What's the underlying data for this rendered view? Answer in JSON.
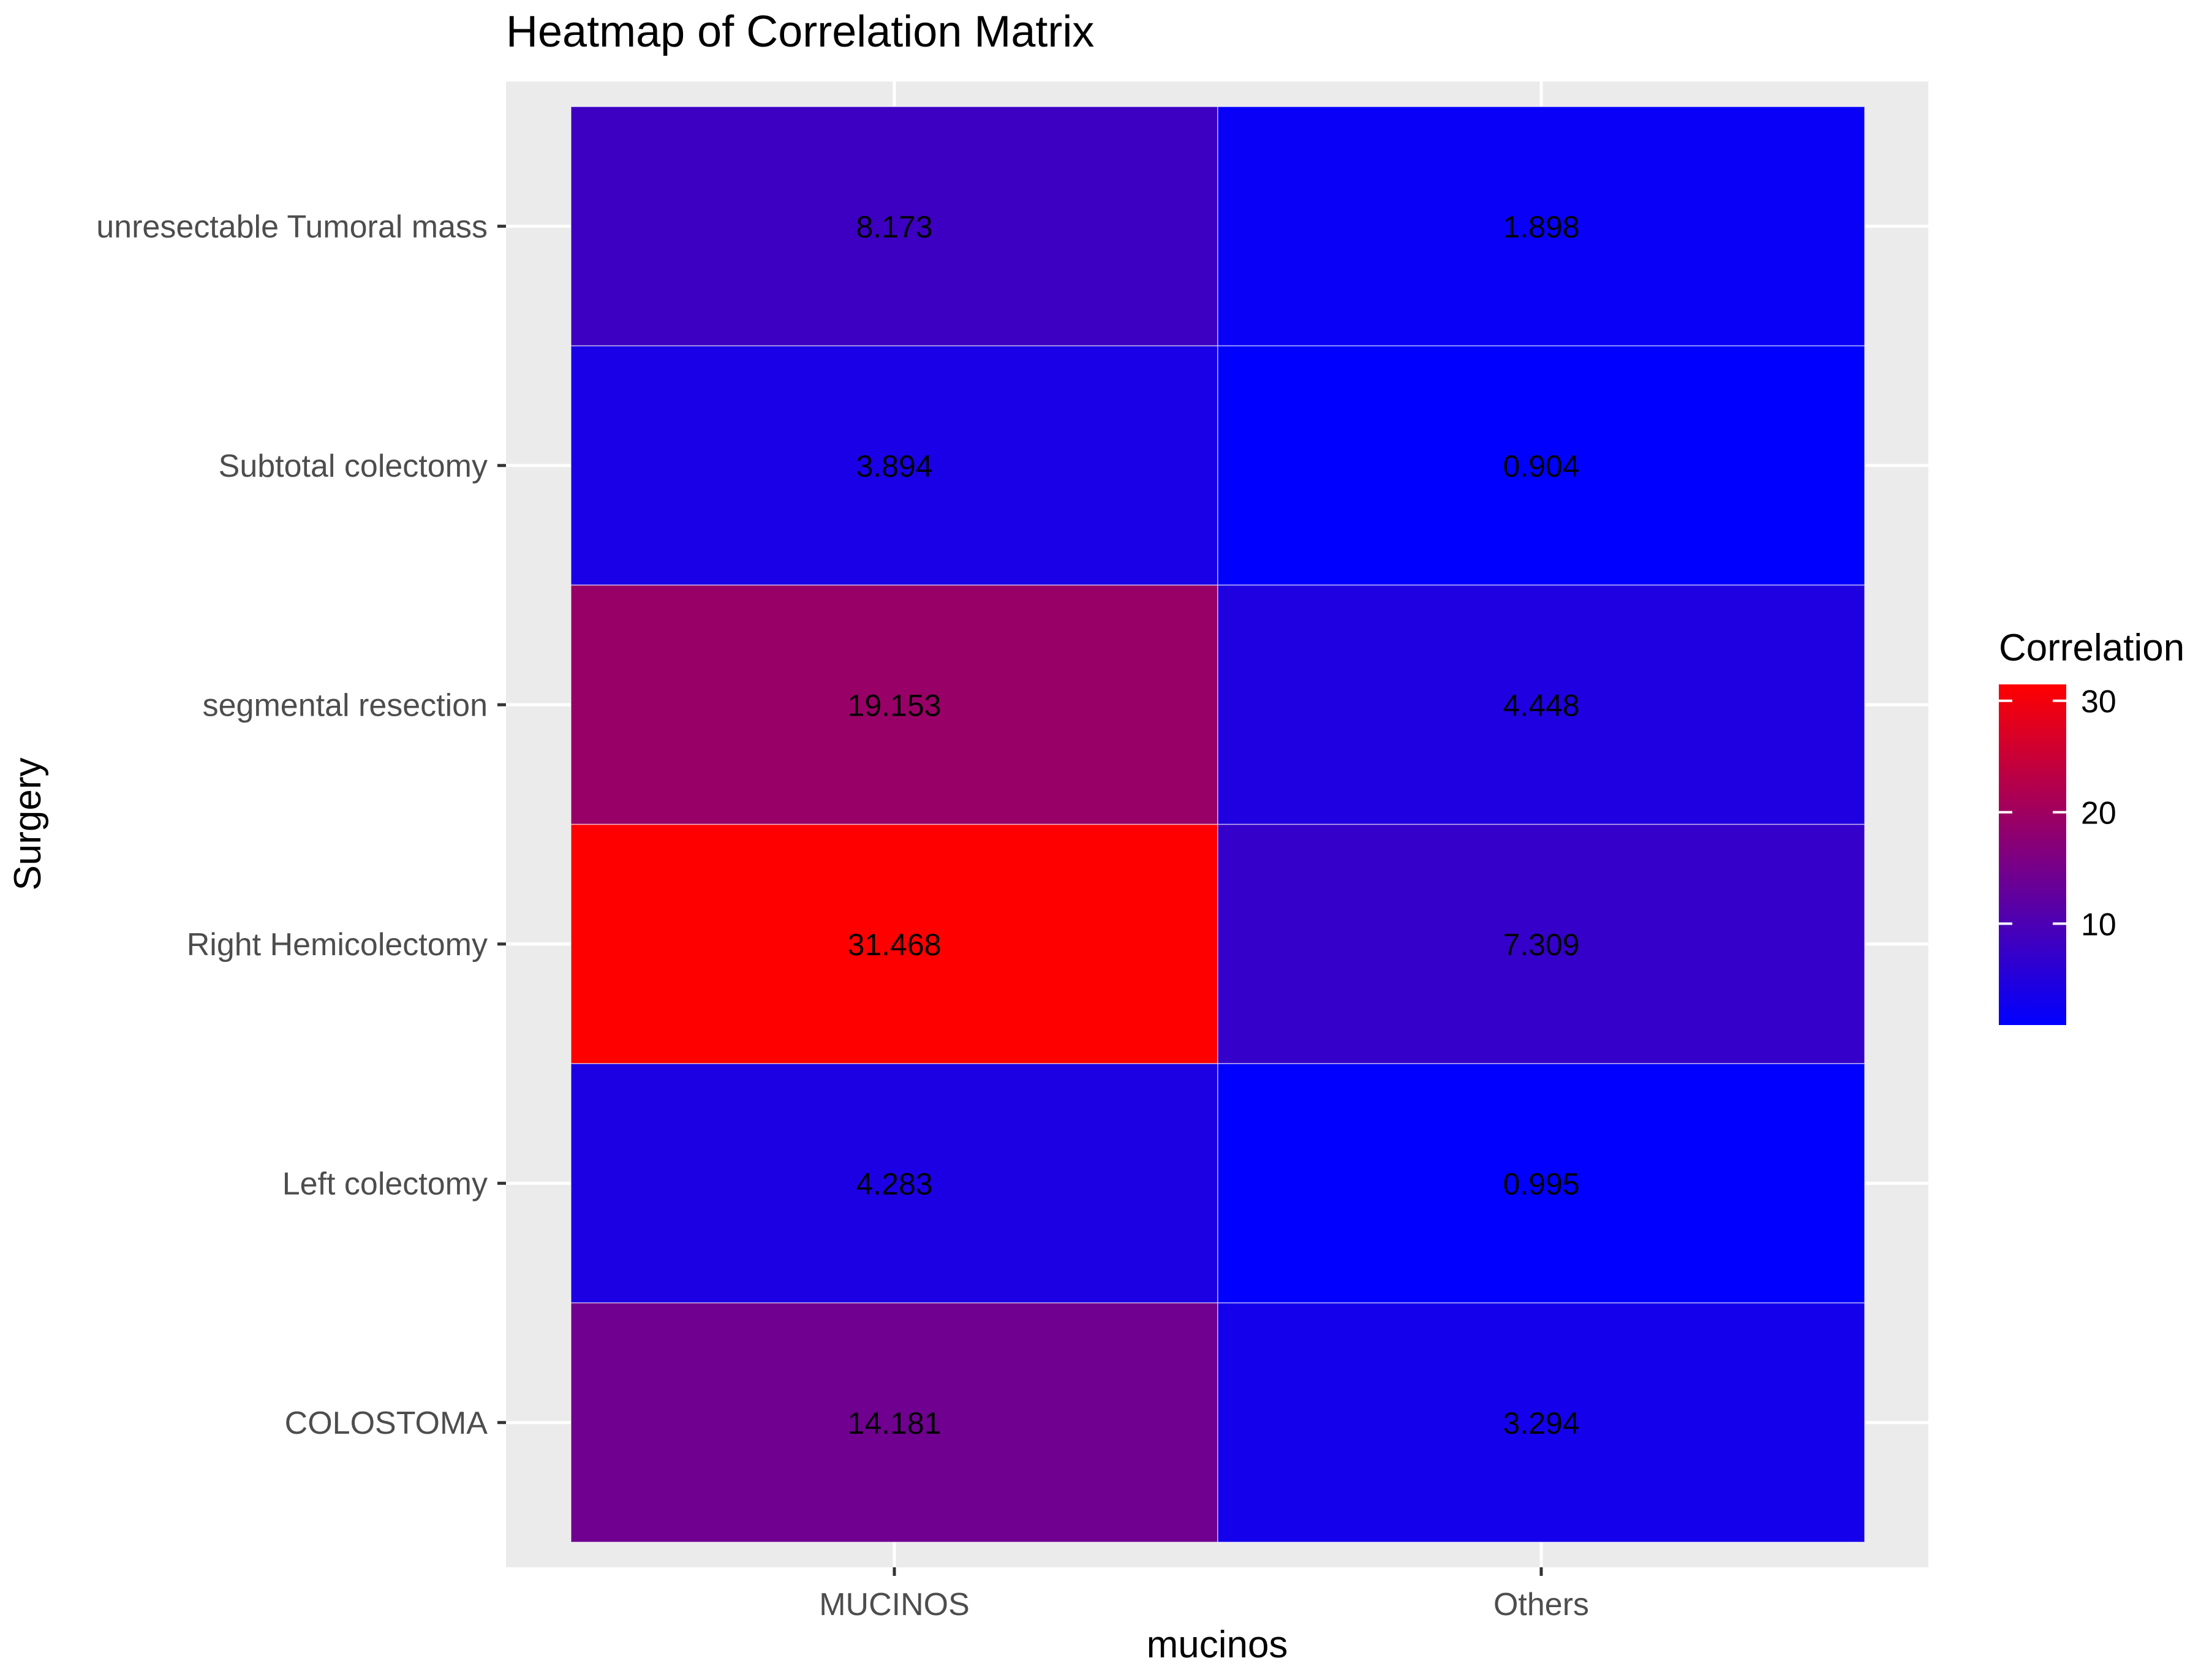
{
  "chart_data": {
    "type": "heatmap",
    "title": "Heatmap of Correlation Matrix",
    "xlabel": "mucinos",
    "ylabel": "Surgery",
    "x_categories": [
      "MUCINOS",
      "Others"
    ],
    "y_categories": [
      "unresectable Tumoral mass",
      "Subtotal colectomy",
      "segmental resection",
      "Right Hemicolectomy",
      "Left colectomy",
      "COLOSTOMA"
    ],
    "values": [
      [
        8.173,
        1.898
      ],
      [
        3.894,
        0.904
      ],
      [
        19.153,
        4.448
      ],
      [
        31.468,
        7.309
      ],
      [
        4.283,
        0.995
      ],
      [
        14.181,
        3.294
      ]
    ],
    "value_labels": [
      [
        "8.173",
        "1.898"
      ],
      [
        "3.894",
        "0.904"
      ],
      [
        "19.153",
        "4.448"
      ],
      [
        "31.468",
        "7.309"
      ],
      [
        "4.283",
        "0.995"
      ],
      [
        "14.181",
        "3.294"
      ]
    ],
    "color_scale": {
      "low": "#0000ff",
      "high": "#ff0000",
      "min": 0.904,
      "max": 31.468
    },
    "legend": {
      "title": "Correlation",
      "ticks": [
        10,
        20,
        30
      ],
      "tick_labels": [
        "10",
        "20",
        "30"
      ],
      "placement": "right"
    },
    "grid": true,
    "panel_background": "#ebebeb",
    "grid_color": "#ffffff"
  }
}
